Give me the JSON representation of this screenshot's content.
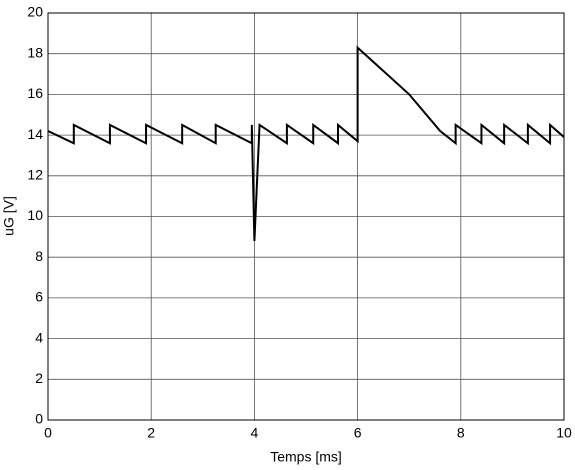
{
  "chart_data": {
    "type": "line",
    "xlabel": "Temps [ms]",
    "ylabel": "uG [V]",
    "x": [
      0,
      0.5,
      0.5,
      1.2,
      1.2,
      1.9,
      1.9,
      2.6,
      2.6,
      3.25,
      3.25,
      3.95,
      3.95,
      4.0,
      4.1,
      4.63,
      4.63,
      5.14,
      5.14,
      5.62,
      5.62,
      6.0,
      6.0,
      7.0,
      7.6,
      7.9,
      7.9,
      8.4,
      8.4,
      8.84,
      8.84,
      9.3,
      9.3,
      9.73,
      9.73,
      10
    ],
    "series": [
      {
        "color": "#000000",
        "values": [
          14.2,
          13.6,
          14.5,
          13.6,
          14.5,
          13.6,
          14.5,
          13.6,
          14.5,
          13.6,
          14.5,
          13.6,
          14.5,
          8.8,
          14.5,
          13.6,
          14.5,
          13.6,
          14.5,
          13.6,
          14.5,
          13.7,
          18.3,
          16,
          14.2,
          13.6,
          14.5,
          13.6,
          14.5,
          13.6,
          14.5,
          13.6,
          14.5,
          13.6,
          14.5,
          13.9
        ]
      }
    ],
    "xlim": [
      0,
      10
    ],
    "xticks": [
      0,
      2,
      4,
      6,
      8,
      10
    ],
    "ylim": [
      0,
      20
    ],
    "yticks": [
      0,
      2,
      4,
      6,
      8,
      10,
      12,
      14,
      16,
      18,
      20
    ],
    "grid": true
  }
}
